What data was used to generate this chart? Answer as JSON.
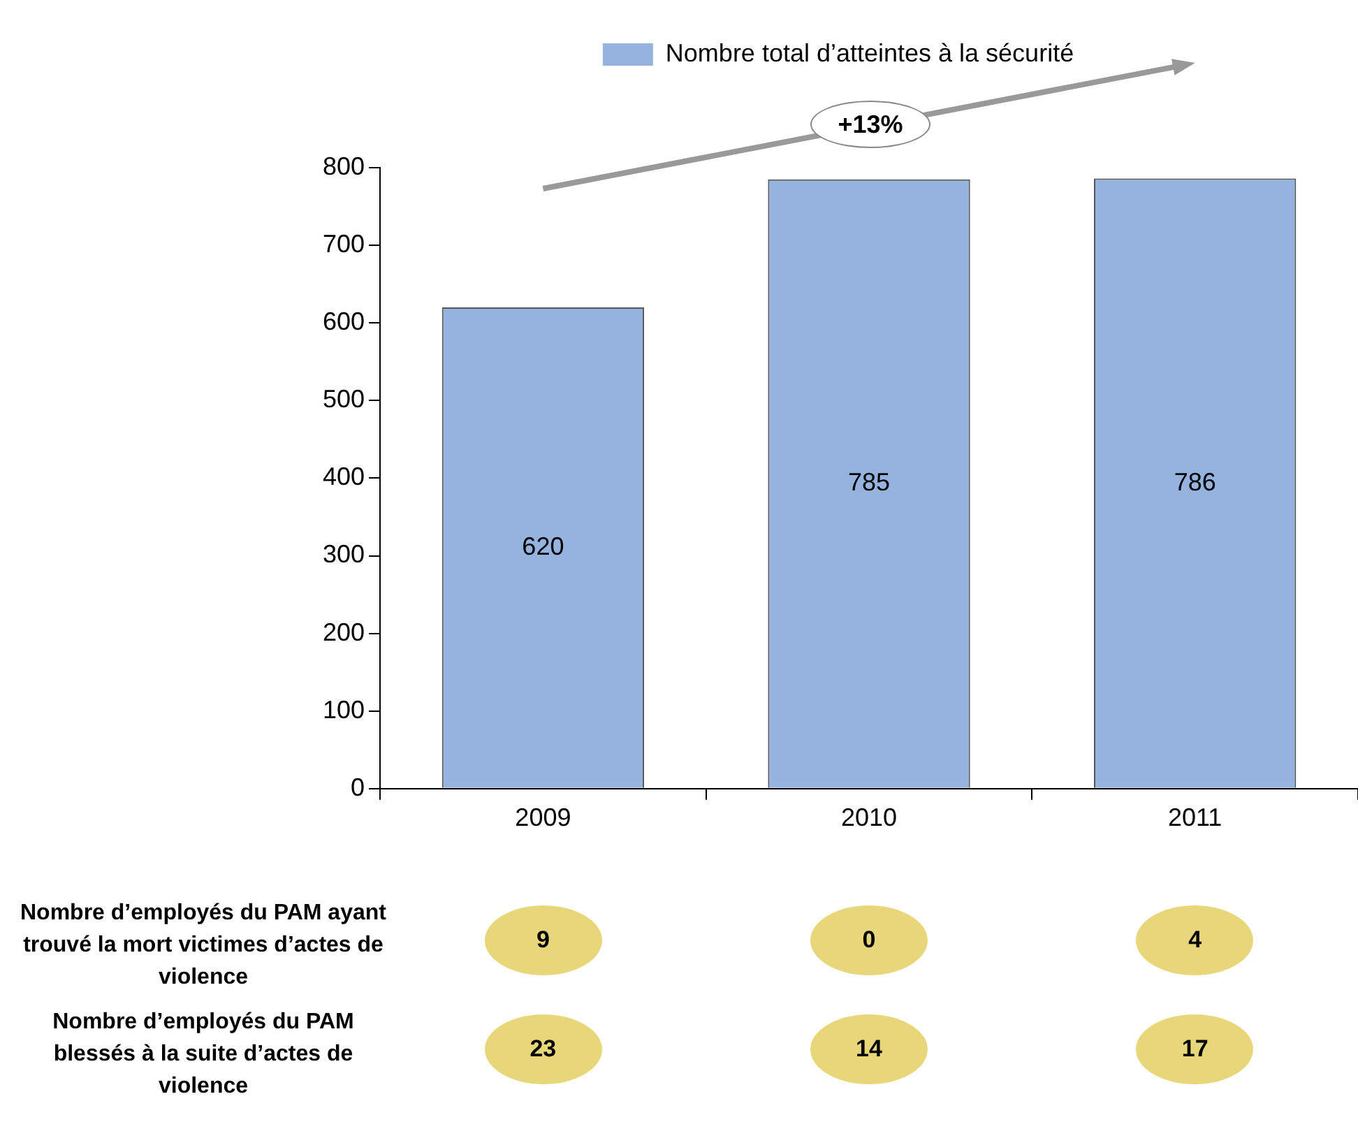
{
  "chart_data": [
    {
      "type": "bar",
      "categories": [
        "2009",
        "2010",
        "2011"
      ],
      "series": [
        {
          "name": "Nombre total d’atteintes à la sécurité",
          "color": "#95b3de",
          "values": [
            620,
            785,
            786
          ]
        }
      ],
      "ylim": [
        0,
        800
      ],
      "yticks": [
        0,
        100,
        200,
        300,
        400,
        500,
        600,
        700,
        800
      ],
      "grid": false,
      "legend": "top",
      "data_labels": true,
      "annotations": [
        "+13%"
      ]
    },
    {
      "type": "other",
      "annotations": [
        "Nombre d’employés du PAM ayant trouvé la mort victimes d’actes de violence",
        "9",
        "0",
        "4",
        "Nombre d’employés du PAM blessés à la suite d’actes de violence",
        "23",
        "14",
        "17"
      ]
    }
  ]
}
